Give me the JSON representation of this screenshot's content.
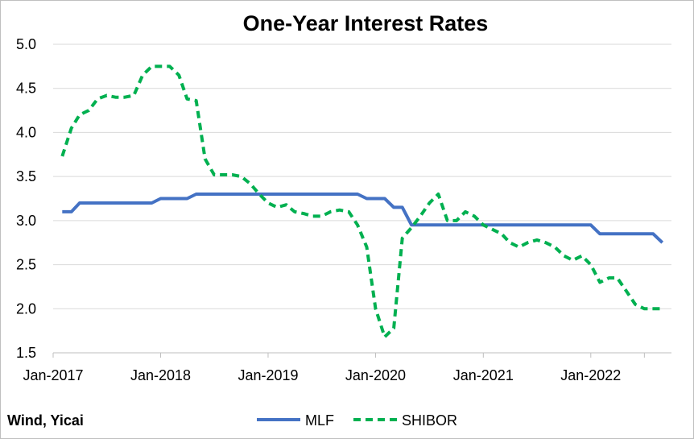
{
  "chart_data": {
    "type": "line",
    "title": "One-Year Interest Rates",
    "source": "Wind, Yicai",
    "ylim": [
      1.5,
      5.0
    ],
    "yticks": [
      "1.5",
      "2.0",
      "2.5",
      "3.0",
      "3.5",
      "4.0",
      "4.5",
      "5.0"
    ],
    "x_tick_labels": [
      "Jan-2017",
      "Jan-2018",
      "Jan-2019",
      "Jan-2020",
      "Jan-2021",
      "Jan-2022"
    ],
    "grid": "horizontal",
    "legend": "bottom",
    "series": [
      {
        "name": "MLF",
        "color": "#4472c4",
        "style": "solid",
        "x": [
          "2017-01",
          "2017-02",
          "2017-03",
          "2017-04",
          "2017-05",
          "2017-06",
          "2017-07",
          "2017-08",
          "2017-09",
          "2017-10",
          "2017-11",
          "2017-12",
          "2018-01",
          "2018-02",
          "2018-03",
          "2018-04",
          "2018-05",
          "2018-06",
          "2018-07",
          "2018-08",
          "2018-09",
          "2018-10",
          "2018-11",
          "2018-12",
          "2019-01",
          "2019-02",
          "2019-03",
          "2019-04",
          "2019-05",
          "2019-06",
          "2019-07",
          "2019-08",
          "2019-09",
          "2019-10",
          "2019-11",
          "2019-12",
          "2020-01",
          "2020-02",
          "2020-03",
          "2020-04",
          "2020-05",
          "2020-06",
          "2020-07",
          "2020-08",
          "2020-09",
          "2020-10",
          "2020-11",
          "2020-12",
          "2021-01",
          "2021-02",
          "2021-03",
          "2021-04",
          "2021-05",
          "2021-06",
          "2021-07",
          "2021-08",
          "2021-09",
          "2021-10",
          "2021-11",
          "2021-12",
          "2022-01",
          "2022-02",
          "2022-03",
          "2022-04",
          "2022-05",
          "2022-06",
          "2022-07",
          "2022-08"
        ],
        "values": [
          3.1,
          3.1,
          3.2,
          3.2,
          3.2,
          3.2,
          3.2,
          3.2,
          3.2,
          3.2,
          3.2,
          3.25,
          3.25,
          3.25,
          3.25,
          3.3,
          3.3,
          3.3,
          3.3,
          3.3,
          3.3,
          3.3,
          3.3,
          3.3,
          3.3,
          3.3,
          3.3,
          3.3,
          3.3,
          3.3,
          3.3,
          3.3,
          3.3,
          3.3,
          3.25,
          3.25,
          3.25,
          3.15,
          3.15,
          2.95,
          2.95,
          2.95,
          2.95,
          2.95,
          2.95,
          2.95,
          2.95,
          2.95,
          2.95,
          2.95,
          2.95,
          2.95,
          2.95,
          2.95,
          2.95,
          2.95,
          2.95,
          2.95,
          2.95,
          2.95,
          2.85,
          2.85,
          2.85,
          2.85,
          2.85,
          2.85,
          2.85,
          2.75
        ]
      },
      {
        "name": "SHIBOR",
        "color": "#00b050",
        "style": "dashed",
        "x": [
          "2017-01",
          "2017-02",
          "2017-03",
          "2017-04",
          "2017-05",
          "2017-06",
          "2017-07",
          "2017-08",
          "2017-09",
          "2017-10",
          "2017-11",
          "2017-12",
          "2018-01",
          "2018-02",
          "2018-03",
          "2018-04",
          "2018-05",
          "2018-06",
          "2018-07",
          "2018-08",
          "2018-09",
          "2018-10",
          "2018-11",
          "2018-12",
          "2019-01",
          "2019-02",
          "2019-03",
          "2019-04",
          "2019-05",
          "2019-06",
          "2019-07",
          "2019-08",
          "2019-09",
          "2019-10",
          "2019-11",
          "2019-12",
          "2020-01",
          "2020-02",
          "2020-03",
          "2020-04",
          "2020-05",
          "2020-06",
          "2020-07",
          "2020-08",
          "2020-09",
          "2020-10",
          "2020-11",
          "2020-12",
          "2021-01",
          "2021-02",
          "2021-03",
          "2021-04",
          "2021-05",
          "2021-06",
          "2021-07",
          "2021-08",
          "2021-09",
          "2021-10",
          "2021-11",
          "2021-12",
          "2022-01",
          "2022-02",
          "2022-03",
          "2022-04",
          "2022-05",
          "2022-06",
          "2022-07",
          "2022-08"
        ],
        "values": [
          3.73,
          4.05,
          4.2,
          4.25,
          4.38,
          4.42,
          4.4,
          4.4,
          4.42,
          4.65,
          4.75,
          4.75,
          4.75,
          4.65,
          4.38,
          4.36,
          3.7,
          3.52,
          3.52,
          3.52,
          3.5,
          3.42,
          3.3,
          3.2,
          3.15,
          3.18,
          3.1,
          3.08,
          3.05,
          3.05,
          3.1,
          3.12,
          3.1,
          2.95,
          2.7,
          2.0,
          1.68,
          1.78,
          2.8,
          2.92,
          3.05,
          3.2,
          3.3,
          3.0,
          3.0,
          3.1,
          3.05,
          2.95,
          2.9,
          2.85,
          2.75,
          2.7,
          2.75,
          2.78,
          2.75,
          2.7,
          2.6,
          2.55,
          2.6,
          2.5,
          2.3,
          2.35,
          2.35,
          2.2,
          2.05,
          2.0,
          2.0,
          2.0
        ]
      }
    ]
  }
}
